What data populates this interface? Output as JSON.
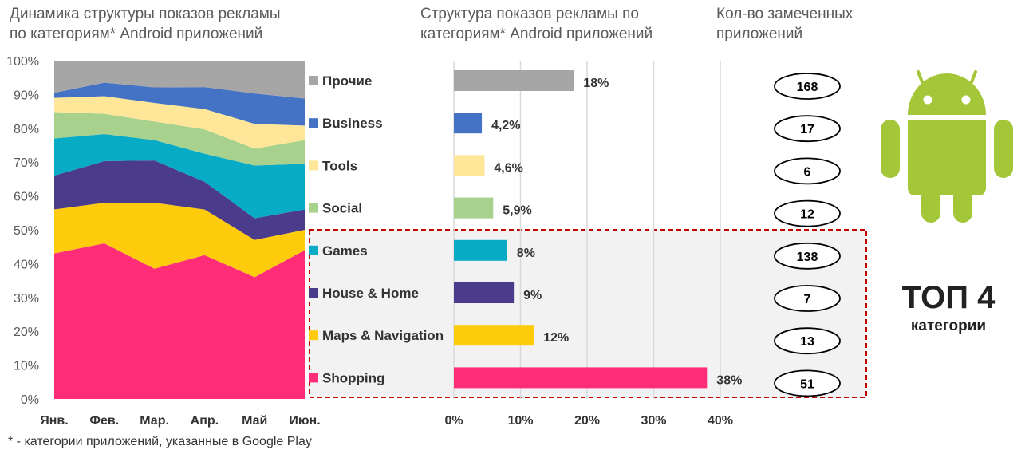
{
  "titles": {
    "area": "Динамика структуры показов рекламы\nпо категориям* Android приложений",
    "bar": "Структура показов рекламы по\nкатегориям* Android приложений",
    "count": "Кол-во замеченных\nприложений"
  },
  "footnote": "* - категории приложений, указанные в Google Play",
  "top_box": {
    "title": "ТОП 4",
    "subtitle": "категории"
  },
  "chart_data": [
    {
      "type": "area",
      "stacked": true,
      "percent": true,
      "categories": [
        "Янв.",
        "Фев.",
        "Мар.",
        "Апр.",
        "Май",
        "Июн."
      ],
      "ylim": [
        0,
        100
      ],
      "yticks": [
        "0%",
        "10%",
        "20%",
        "30%",
        "40%",
        "50%",
        "60%",
        "70%",
        "80%",
        "90%",
        "100%"
      ],
      "series": [
        {
          "name": "Shopping",
          "color": "#FF2D78",
          "values": [
            43,
            46,
            38.5,
            42.5,
            36,
            44
          ]
        },
        {
          "name": "Maps & Navigation",
          "color": "#FFCC0D",
          "values": [
            13,
            12,
            19.5,
            13.5,
            11,
            6
          ]
        },
        {
          "name": "House & Home",
          "color": "#4B3B8B",
          "values": [
            10,
            12.3,
            12.5,
            8.2,
            6.4,
            6
          ]
        },
        {
          "name": "Games",
          "color": "#07ABC6",
          "values": [
            11,
            8,
            6,
            8.3,
            15.6,
            13.5
          ]
        },
        {
          "name": "Social",
          "color": "#A9D18E",
          "values": [
            7.8,
            6,
            5.5,
            7.2,
            5,
            7
          ]
        },
        {
          "name": "Tools",
          "color": "#FFE699",
          "values": [
            4.2,
            5.2,
            5.5,
            6,
            7.3,
            4.3
          ]
        },
        {
          "name": "Business",
          "color": "#4472C4",
          "values": [
            1.5,
            4,
            4.6,
            6.5,
            9,
            8
          ]
        },
        {
          "name": "Прочие",
          "color": "#A6A6A6",
          "values": [
            9.5,
            6.5,
            7.9,
            7.8,
            9.7,
            11.2
          ]
        }
      ]
    },
    {
      "type": "bar",
      "orientation": "horizontal",
      "categories": [
        "Прочие",
        "Business",
        "Tools",
        "Social",
        "Games",
        "House & Home",
        "Maps & Navigation",
        "Shopping"
      ],
      "values": [
        18,
        4.2,
        4.6,
        5.9,
        8,
        9,
        12,
        38
      ],
      "labels": [
        "18%",
        "4,2%",
        "4,6%",
        "5,9%",
        "8%",
        "9%",
        "12%",
        "38%"
      ],
      "colors": [
        "#A6A6A6",
        "#4472C4",
        "#FFE699",
        "#A9D18E",
        "#07ABC6",
        "#4B3B8B",
        "#FFCC0D",
        "#FF2D78"
      ],
      "xlim": [
        0,
        40
      ],
      "xticks": [
        "0%",
        "10%",
        "20%",
        "30%",
        "40%"
      ]
    },
    {
      "type": "table",
      "categories": [
        "Прочие",
        "Business",
        "Tools",
        "Social",
        "Games",
        "House & Home",
        "Maps & Navigation",
        "Shopping"
      ],
      "values": [
        168,
        17,
        6,
        12,
        138,
        7,
        13,
        51
      ]
    }
  ],
  "colors": {
    "android": "#A4C639",
    "highlight_border": "#C00000",
    "highlight_fill": "#F2F2F2"
  }
}
